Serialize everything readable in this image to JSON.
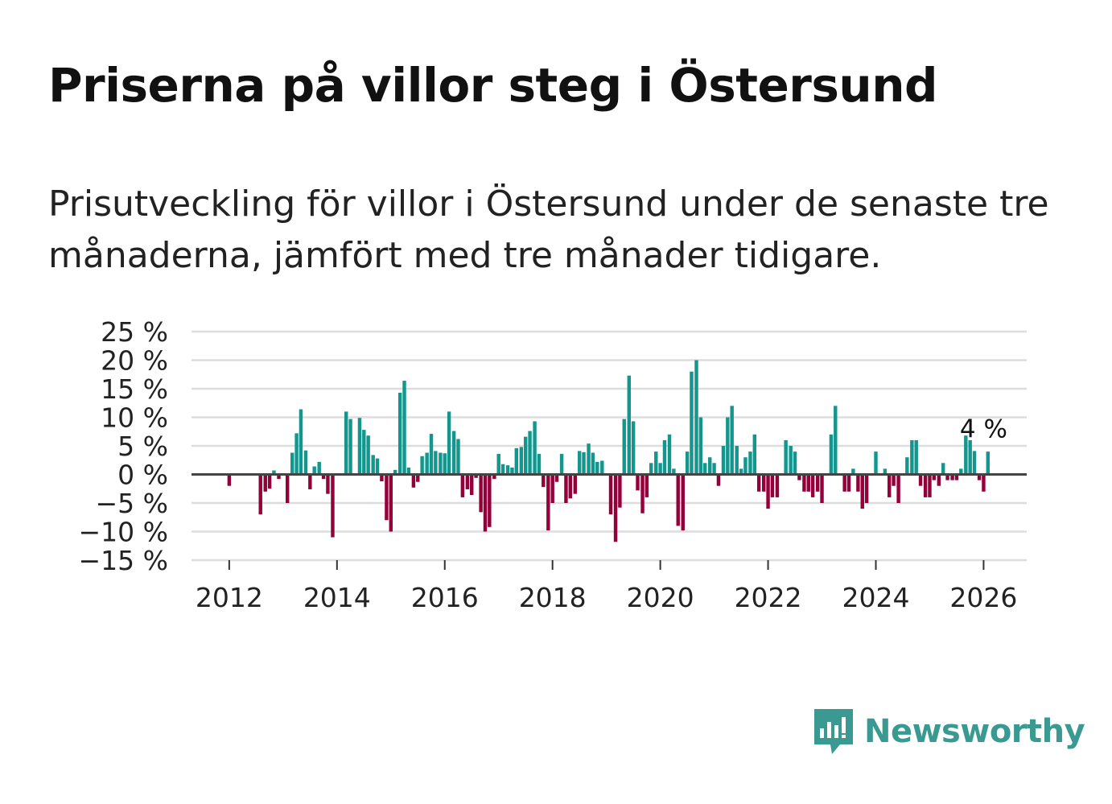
{
  "title": "Priserna på villor steg i Östersund",
  "subtitle": "Prisutveckling för villor i Östersund under de senaste tre månaderna, jämfört med tre månader tidigare.",
  "brand": {
    "name": "Newsworthy",
    "color": "#3a9a91"
  },
  "colors": {
    "positive": "#13968d",
    "negative": "#93003a",
    "grid": "#dddddd",
    "zero": "#444444"
  },
  "chart_data": {
    "type": "bar",
    "title": "Priserna på villor steg i Östersund",
    "xlabel": "",
    "ylabel": "",
    "ylim": [
      -15,
      25
    ],
    "xlim": [
      2011.3,
      2026.8
    ],
    "y_ticks": [
      -15,
      -10,
      -5,
      0,
      5,
      10,
      15,
      20,
      25
    ],
    "y_tick_labels": [
      "−15 %",
      "−10 %",
      "−5 %",
      "0 %",
      "5 %",
      "10 %",
      "15 %",
      "20 %",
      "25 %"
    ],
    "x_ticks": [
      2012,
      2014,
      2016,
      2018,
      2020,
      2022,
      2024,
      2026
    ],
    "x_tick_labels": [
      "2012",
      "2014",
      "2016",
      "2018",
      "2020",
      "2022",
      "2024",
      "2026"
    ],
    "grid": true,
    "annotation": {
      "text": "4 %",
      "x": 2026.0,
      "y": 4
    },
    "bar_width_years": 0.066,
    "series": [
      {
        "name": "Prisutveckling",
        "points": [
          [
            2012.0,
            -2
          ],
          [
            2012.58,
            -7
          ],
          [
            2012.67,
            -3
          ],
          [
            2012.75,
            -2.5
          ],
          [
            2012.83,
            0.7
          ],
          [
            2012.92,
            -0.8
          ],
          [
            2013.08,
            -5
          ],
          [
            2013.17,
            3.8
          ],
          [
            2013.25,
            7.2
          ],
          [
            2013.33,
            11.4
          ],
          [
            2013.42,
            4.2
          ],
          [
            2013.5,
            -2.6
          ],
          [
            2013.58,
            1.4
          ],
          [
            2013.67,
            2.2
          ],
          [
            2013.75,
            -0.8
          ],
          [
            2013.83,
            -3.4
          ],
          [
            2013.92,
            -11
          ],
          [
            2014.17,
            11
          ],
          [
            2014.25,
            9.7
          ],
          [
            2014.42,
            9.9
          ],
          [
            2014.5,
            7.8
          ],
          [
            2014.58,
            6.8
          ],
          [
            2014.67,
            3.4
          ],
          [
            2014.75,
            2.8
          ],
          [
            2014.83,
            -1.2
          ],
          [
            2014.92,
            -8
          ],
          [
            2015.0,
            -10
          ],
          [
            2015.08,
            0.8
          ],
          [
            2015.17,
            14.3
          ],
          [
            2015.25,
            16.4
          ],
          [
            2015.33,
            1.2
          ],
          [
            2015.42,
            -2.3
          ],
          [
            2015.5,
            -1.3
          ],
          [
            2015.58,
            3.2
          ],
          [
            2015.67,
            3.8
          ],
          [
            2015.75,
            7.1
          ],
          [
            2015.83,
            4.1
          ],
          [
            2015.92,
            3.8
          ],
          [
            2016.0,
            3.7
          ],
          [
            2016.08,
            11
          ],
          [
            2016.17,
            7.6
          ],
          [
            2016.25,
            6.2
          ],
          [
            2016.33,
            -4
          ],
          [
            2016.42,
            -2.6
          ],
          [
            2016.5,
            -3.6
          ],
          [
            2016.58,
            -0.6
          ],
          [
            2016.67,
            -6.6
          ],
          [
            2016.75,
            -10
          ],
          [
            2016.83,
            -9.2
          ],
          [
            2016.92,
            -0.8
          ],
          [
            2017.0,
            3.6
          ],
          [
            2017.08,
            1.8
          ],
          [
            2017.17,
            1.6
          ],
          [
            2017.25,
            1.2
          ],
          [
            2017.33,
            4.6
          ],
          [
            2017.42,
            4.8
          ],
          [
            2017.5,
            6.6
          ],
          [
            2017.58,
            7.6
          ],
          [
            2017.67,
            9.3
          ],
          [
            2017.75,
            3.6
          ],
          [
            2017.83,
            -2.2
          ],
          [
            2017.92,
            -9.8
          ],
          [
            2018.0,
            -5
          ],
          [
            2018.08,
            -1.3
          ],
          [
            2018.17,
            3.6
          ],
          [
            2018.25,
            -5
          ],
          [
            2018.33,
            -4.2
          ],
          [
            2018.42,
            -3.4
          ],
          [
            2018.5,
            4.1
          ],
          [
            2018.58,
            3.9
          ],
          [
            2018.67,
            5.4
          ],
          [
            2018.75,
            3.8
          ],
          [
            2018.83,
            2.2
          ],
          [
            2018.92,
            2.4
          ],
          [
            2019.08,
            -7
          ],
          [
            2019.17,
            -11.8
          ],
          [
            2019.25,
            -5.8
          ],
          [
            2019.33,
            9.7
          ],
          [
            2019.42,
            17.3
          ],
          [
            2019.5,
            9.3
          ],
          [
            2019.58,
            -2.8
          ],
          [
            2019.67,
            -6.8
          ],
          [
            2019.75,
            -4
          ],
          [
            2019.83,
            2
          ],
          [
            2019.92,
            4
          ],
          [
            2020.0,
            2
          ],
          [
            2020.08,
            6
          ],
          [
            2020.17,
            7
          ],
          [
            2020.25,
            1
          ],
          [
            2020.33,
            -9
          ],
          [
            2020.42,
            -9.8
          ],
          [
            2020.5,
            4
          ],
          [
            2020.58,
            18
          ],
          [
            2020.67,
            20
          ],
          [
            2020.75,
            10
          ],
          [
            2020.83,
            2
          ],
          [
            2020.92,
            3
          ],
          [
            2021.0,
            2
          ],
          [
            2021.08,
            -2
          ],
          [
            2021.17,
            5
          ],
          [
            2021.25,
            10
          ],
          [
            2021.33,
            12
          ],
          [
            2021.42,
            5
          ],
          [
            2021.5,
            1
          ],
          [
            2021.58,
            3
          ],
          [
            2021.67,
            4
          ],
          [
            2021.75,
            7
          ],
          [
            2021.83,
            -3
          ],
          [
            2021.92,
            -3
          ],
          [
            2022.0,
            -6
          ],
          [
            2022.08,
            -4
          ],
          [
            2022.17,
            -4
          ],
          [
            2022.33,
            6
          ],
          [
            2022.42,
            5
          ],
          [
            2022.5,
            4
          ],
          [
            2022.58,
            -1
          ],
          [
            2022.67,
            -3
          ],
          [
            2022.75,
            -3
          ],
          [
            2022.83,
            -4
          ],
          [
            2022.92,
            -3
          ],
          [
            2023.0,
            -5
          ],
          [
            2023.17,
            7
          ],
          [
            2023.25,
            12
          ],
          [
            2023.42,
            -3
          ],
          [
            2023.5,
            -3
          ],
          [
            2023.58,
            1
          ],
          [
            2023.67,
            -3
          ],
          [
            2023.75,
            -6
          ],
          [
            2023.83,
            -5
          ],
          [
            2024.0,
            4
          ],
          [
            2024.17,
            1
          ],
          [
            2024.25,
            -4
          ],
          [
            2024.33,
            -2
          ],
          [
            2024.42,
            -5
          ],
          [
            2024.58,
            3
          ],
          [
            2024.67,
            6
          ],
          [
            2024.75,
            6
          ],
          [
            2024.83,
            -2
          ],
          [
            2024.92,
            -4
          ],
          [
            2025.0,
            -4
          ],
          [
            2025.08,
            -1
          ],
          [
            2025.17,
            -2
          ],
          [
            2025.25,
            2
          ],
          [
            2025.33,
            -1
          ],
          [
            2025.42,
            -1
          ],
          [
            2025.5,
            -1
          ],
          [
            2025.58,
            1
          ],
          [
            2025.67,
            6.8
          ],
          [
            2025.75,
            6
          ],
          [
            2025.83,
            4.1
          ],
          [
            2025.92,
            -1
          ],
          [
            2026.0,
            -3
          ],
          [
            2026.08,
            4
          ]
        ]
      }
    ]
  }
}
